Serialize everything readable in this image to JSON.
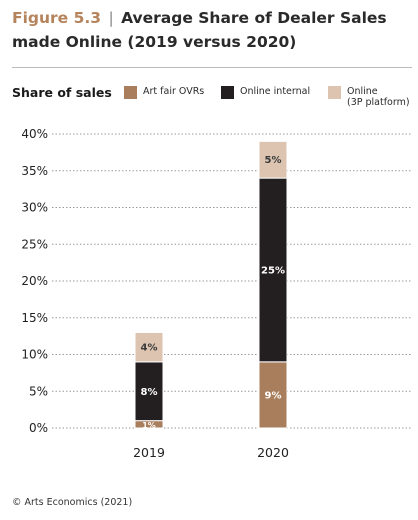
{
  "figure": {
    "number": "Figure 5.3",
    "separator": "|",
    "title": "Average Share of Dealer Sales made Online (2019 versus 2020)"
  },
  "source": "© Arts Economics (2021)",
  "chart_data": {
    "type": "bar",
    "stacked": true,
    "ylabel": "Share of sales",
    "ylim": [
      0,
      40
    ],
    "yticks": [
      "0%",
      "5%",
      "10%",
      "15%",
      "20%",
      "25%",
      "30%",
      "35%",
      "40%"
    ],
    "grid": true,
    "legend_position": "top",
    "categories": [
      "2019",
      "2020"
    ],
    "series": [
      {
        "name": "Art fair OVRs",
        "values": [
          1,
          9
        ],
        "labels": [
          "1%",
          "9%"
        ],
        "color": "#a97e5c",
        "label_color": "#ffffff"
      },
      {
        "name": "Online internal",
        "values": [
          8,
          25
        ],
        "labels": [
          "8%",
          "25%"
        ],
        "color": "#231f20",
        "label_color": "#ffffff"
      },
      {
        "name": "Online\n(3P platform)",
        "values": [
          4,
          5
        ],
        "labels": [
          "4%",
          "5%"
        ],
        "color": "#dcc4b1",
        "label_color": "#3a3a3a"
      }
    ]
  }
}
